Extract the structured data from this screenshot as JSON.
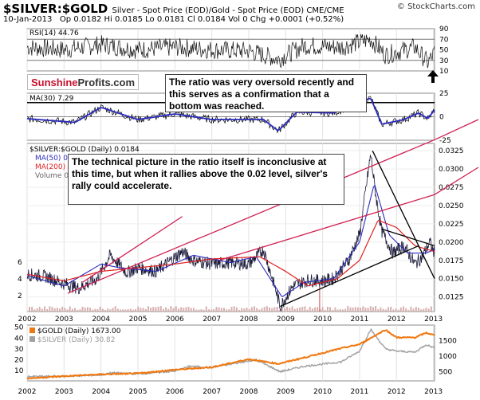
{
  "header": {
    "title": "$SILVER:$GOLD",
    "subtitle": "Silver - Spot Price (EOD)/Gold - Spot Price (EOD)  CME/CME",
    "date": "10-Jan-2013",
    "ohlc": "Op 0.0182  Hi 0.0185  Lo 0.0181  Cl 0.0184  Vol 0  Chg +0.0001 (+0.52%)",
    "source": "© StockCharts.com"
  },
  "logo": {
    "part1": "Sunshine",
    "part2": "Profits.com"
  },
  "annotations": {
    "rsi_note": "The ratio was very oversold recently and this serves as a confirmation that a bottom was reached.",
    "main_note": "The technical picture in the ratio itself is inconclusive at this time, but when it rallies above the 0.02 level, silver's rally could accelerate."
  },
  "legend": {
    "rsi": "RSI(14) 44.76",
    "macd": "MA(30) 7.29",
    "main_title": "$SILVER:$GOLD (Daily) 0.0184",
    "ma50": "MA(50) 0",
    "ma200": "MA(200)",
    "volume": "Volume 0",
    "gold": "$GOLD (Daily) 1673.00",
    "silver": "$SILVER (Daily) 30.82"
  },
  "colors": {
    "price": "#1a1a3a",
    "ma50": "#2b2bbf",
    "ma200": "#e02020",
    "trend_red": "#d02050",
    "trend_black": "#000000",
    "gold": "#f07810",
    "silver": "#a0a0a0",
    "volume": "#d8b0b0"
  },
  "chart_data": [
    {
      "type": "line",
      "panel": "rsi",
      "title": "RSI(14) 44.76",
      "ylim": [
        10,
        90
      ],
      "yticks": [
        10,
        30,
        50,
        70,
        90
      ],
      "reference_lines": [
        30,
        70
      ],
      "series": [
        {
          "name": "RSI(14)",
          "x": [
            2002.0,
            2003.0,
            2004.0,
            2005.0,
            2006.0,
            2007.0,
            2008.0,
            2008.8,
            2009.5,
            2010.5,
            2011.3,
            2011.7,
            2012.5,
            2012.85,
            2013.03
          ],
          "values": [
            55,
            50,
            60,
            50,
            55,
            50,
            48,
            32,
            58,
            55,
            70,
            40,
            55,
            25,
            44.76
          ]
        }
      ]
    },
    {
      "type": "line",
      "panel": "oscillator",
      "title": "MA(30) 7.29",
      "ylim": [
        -25,
        25
      ],
      "yticks": [
        -25,
        0,
        25
      ],
      "series": [
        {
          "name": "MA(30)",
          "x": [
            2002.0,
            2003.3,
            2004.0,
            2005.0,
            2006.0,
            2007.0,
            2008.4,
            2008.8,
            2009.3,
            2010.3,
            2011.3,
            2011.6,
            2012.2,
            2012.6,
            2012.85,
            2013.03
          ],
          "values": [
            -2,
            -6,
            10,
            -3,
            3,
            -3,
            -3,
            -15,
            5,
            4,
            20,
            -8,
            -3,
            4,
            -2,
            7.29
          ]
        }
      ]
    },
    {
      "type": "line",
      "panel": "main",
      "title": "$SILVER:$GOLD (Daily) 0.0184",
      "x_range": [
        2002,
        2013
      ],
      "xticks": [
        2002,
        2003,
        2004,
        2005,
        2006,
        2007,
        2008,
        2009,
        2010,
        2011,
        2012,
        2013
      ],
      "right_ticks": [
        0.0125,
        0.015,
        0.0175,
        0.02,
        0.0225,
        0.025,
        0.0275,
        0.03,
        0.0325
      ],
      "left_ticks": [
        2,
        4,
        6
      ],
      "series": [
        {
          "name": "$SILVER:$GOLD",
          "x": [
            2002.0,
            2002.5,
            2002.9,
            2003.4,
            2003.9,
            2004.25,
            2004.7,
            2005.0,
            2005.5,
            2006.2,
            2006.5,
            2007.0,
            2007.5,
            2008.0,
            2008.4,
            2008.7,
            2008.85,
            2009.2,
            2009.6,
            2010.0,
            2010.3,
            2010.7,
            2011.0,
            2011.3,
            2011.45,
            2011.6,
            2011.9,
            2012.2,
            2012.5,
            2012.7,
            2012.9,
            2013.03
          ],
          "values": [
            0.0156,
            0.0153,
            0.0145,
            0.0137,
            0.015,
            0.0182,
            0.0158,
            0.0165,
            0.016,
            0.0187,
            0.0175,
            0.017,
            0.0172,
            0.017,
            0.019,
            0.014,
            0.0112,
            0.014,
            0.0148,
            0.0147,
            0.015,
            0.0175,
            0.021,
            0.032,
            0.026,
            0.0215,
            0.0185,
            0.0195,
            0.017,
            0.018,
            0.02,
            0.0184
          ]
        },
        {
          "name": "MA(50)",
          "x": [
            2002.0,
            2003.0,
            2004.0,
            2004.5,
            2005.5,
            2006.5,
            2007.5,
            2008.2,
            2008.9,
            2009.5,
            2010.3,
            2011.0,
            2011.4,
            2011.8,
            2012.3,
            2012.8,
            2013.03
          ],
          "values": [
            0.0154,
            0.014,
            0.017,
            0.0165,
            0.016,
            0.0182,
            0.0172,
            0.018,
            0.0125,
            0.0145,
            0.015,
            0.02,
            0.028,
            0.021,
            0.0185,
            0.0185,
            0.019
          ]
        },
        {
          "name": "MA(200)",
          "x": [
            2002.0,
            2003.0,
            2004.0,
            2005.0,
            2006.0,
            2007.0,
            2008.3,
            2009.0,
            2009.6,
            2010.4,
            2011.0,
            2011.5,
            2012.0,
            2012.5,
            2013.03
          ],
          "values": [
            0.0156,
            0.0147,
            0.016,
            0.0165,
            0.017,
            0.0177,
            0.018,
            0.016,
            0.014,
            0.015,
            0.0175,
            0.023,
            0.022,
            0.0195,
            0.0187
          ]
        }
      ],
      "trendlines": [
        {
          "color": "red",
          "x": [
            2003.5,
            2006.2
          ],
          "values": [
            0.0145,
            0.0235
          ]
        },
        {
          "color": "red",
          "x": [
            2003.1,
            2013.03
          ],
          "values": [
            0.013,
            0.034
          ]
        },
        {
          "color": "red",
          "x": [
            2007.2,
            2013.03
          ],
          "values": [
            0.0175,
            0.0265
          ]
        },
        {
          "color": "black",
          "x": [
            2008.85,
            2012.6
          ],
          "values": [
            0.0112,
            0.0195
          ]
        },
        {
          "color": "black",
          "x": [
            2011.35,
            2013.03
          ],
          "values": [
            0.0325,
            0.015
          ]
        },
        {
          "color": "black",
          "x": [
            2011.6,
            2013.03
          ],
          "values": [
            0.0218,
            0.0195
          ]
        }
      ]
    },
    {
      "type": "line",
      "panel": "gold_silver",
      "title": "$GOLD (Daily) 1673.00",
      "xticks": [
        2002,
        2003,
        2004,
        2005,
        2006,
        2007,
        2008,
        2009,
        2010,
        2011,
        2012,
        2013
      ],
      "left_ticks": [
        10,
        20,
        30,
        40,
        50
      ],
      "right_ticks": [
        500,
        1000,
        1500
      ],
      "series": [
        {
          "name": "$GOLD (Daily) 1673.00",
          "x": [
            2002.0,
            2003.0,
            2004.0,
            2005.0,
            2006.0,
            2007.0,
            2008.0,
            2008.8,
            2009.5,
            2010.5,
            2011.0,
            2011.7,
            2012.0,
            2012.5,
            2012.8,
            2013.03
          ],
          "values": [
            280,
            350,
            410,
            440,
            560,
            640,
            900,
            750,
            950,
            1250,
            1380,
            1850,
            1600,
            1600,
            1750,
            1673
          ]
        },
        {
          "name": "$SILVER (Daily) 30.82",
          "x": [
            2002.0,
            2003.0,
            2004.0,
            2004.3,
            2005.0,
            2006.0,
            2006.4,
            2007.0,
            2008.2,
            2008.85,
            2009.5,
            2010.5,
            2011.0,
            2011.3,
            2011.7,
            2012.0,
            2012.5,
            2012.8,
            2013.03
          ],
          "values": [
            4.5,
            4.8,
            6.0,
            8.0,
            7.0,
            9.5,
            14.0,
            13.0,
            20.0,
            9.0,
            14.0,
            18.0,
            28.0,
            48.0,
            30.0,
            28.0,
            27.0,
            34.0,
            30.82
          ]
        }
      ]
    }
  ]
}
